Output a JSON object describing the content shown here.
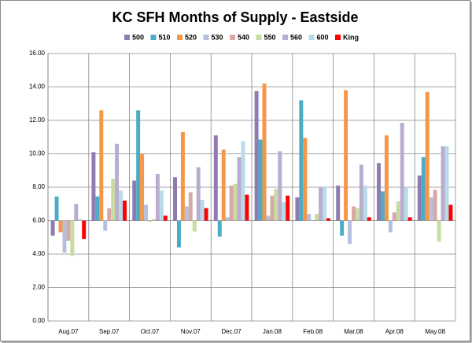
{
  "chart_data": {
    "type": "bar",
    "title": "KC SFH Months of Supply - Eastside",
    "categories": [
      "Aug.07",
      "Sep.07",
      "Oct.07",
      "Nov.07",
      "Dec.07",
      "Jan.08",
      "Feb.08",
      "Mar.08",
      "Apr.08",
      "May.08"
    ],
    "series": [
      {
        "name": "500",
        "color": "#8e7bb0",
        "values": [
          5.1,
          10.1,
          8.4,
          8.6,
          11.1,
          13.75,
          7.4,
          8.1,
          9.45,
          8.7
        ]
      },
      {
        "name": "510",
        "color": "#4bacc6",
        "values": [
          7.45,
          7.45,
          12.6,
          4.4,
          5.05,
          10.85,
          13.2,
          5.1,
          7.75,
          9.8
        ]
      },
      {
        "name": "520",
        "color": "#f79646",
        "values": [
          5.3,
          12.6,
          10.0,
          11.3,
          10.25,
          14.2,
          10.95,
          13.8,
          11.1,
          13.7
        ]
      },
      {
        "name": "530",
        "color": "#b4c0de",
        "values": [
          4.1,
          5.4,
          6.95,
          6.85,
          6.2,
          6.3,
          6.4,
          4.6,
          5.3,
          7.4
        ]
      },
      {
        "name": "540",
        "color": "#d8a8a6",
        "values": [
          4.8,
          6.75,
          5.95,
          7.7,
          8.1,
          7.5,
          6.0,
          6.85,
          6.5,
          7.85
        ]
      },
      {
        "name": "550",
        "color": "#c8dba2",
        "values": [
          3.9,
          8.5,
          6.1,
          5.35,
          8.2,
          7.9,
          6.4,
          6.75,
          7.15,
          4.75
        ]
      },
      {
        "name": "560",
        "color": "#b9acce",
        "values": [
          7.0,
          10.6,
          8.8,
          9.2,
          9.8,
          10.15,
          8.0,
          9.35,
          11.85,
          10.45
        ]
      },
      {
        "name": "600",
        "color": "#b7dbe8",
        "values": [
          6.1,
          7.8,
          7.8,
          7.25,
          10.75,
          7.1,
          8.05,
          8.1,
          8.0,
          10.45
        ]
      },
      {
        "name": "King",
        "color": "#ff0000",
        "values": [
          4.9,
          7.2,
          6.3,
          6.75,
          7.55,
          7.5,
          6.15,
          6.2,
          6.2,
          6.95
        ]
      }
    ],
    "ylim": [
      0,
      16
    ],
    "yticks": [
      {
        "value": 0,
        "label": "0.00"
      },
      {
        "value": 2,
        "label": "2.00"
      },
      {
        "value": 4,
        "label": "4.00"
      },
      {
        "value": 6,
        "label": "6.00"
      },
      {
        "value": 8,
        "label": "8.00"
      },
      {
        "value": 10,
        "label": "10.00"
      },
      {
        "value": 12,
        "label": "12.00"
      },
      {
        "value": 14,
        "label": "14.00"
      },
      {
        "value": 16,
        "label": "16.00"
      }
    ],
    "x_axis_crosses": 6,
    "grid": true,
    "legend": "top"
  }
}
